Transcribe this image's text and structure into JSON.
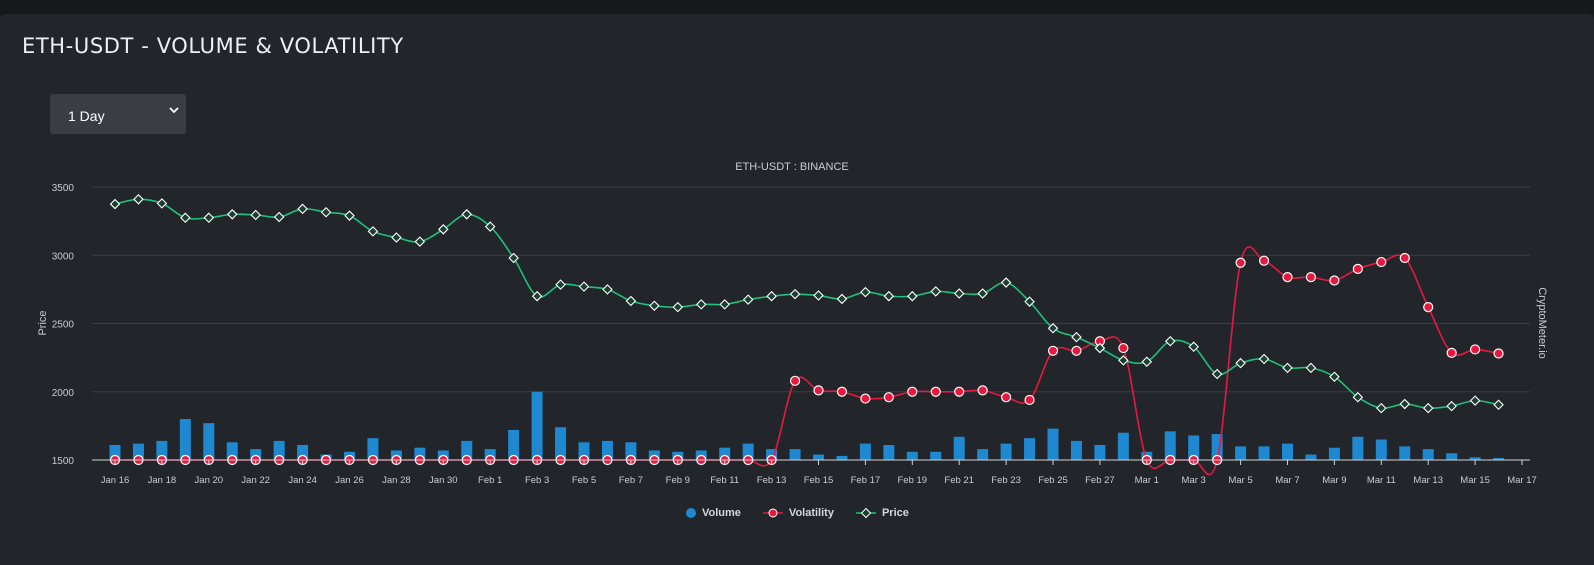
{
  "page": {
    "title": "ETH-USDT - VOLUME & VOLATILITY",
    "timeframe": {
      "selected": "1 Day"
    }
  },
  "chart_data": {
    "type": "line",
    "title": "ETH-USDT : BINANCE",
    "ylabel": "Price",
    "watermark": "CryptoMeter.io",
    "ylim": [
      1500,
      3500
    ],
    "yticks": [
      1500,
      2000,
      2500,
      3000,
      3500
    ],
    "grid": true,
    "legend_position": "bottom",
    "x": [
      "Jan 16",
      "Jan 17",
      "Jan 18",
      "Jan 19",
      "Jan 20",
      "Jan 21",
      "Jan 22",
      "Jan 23",
      "Jan 24",
      "Jan 25",
      "Jan 26",
      "Jan 27",
      "Jan 28",
      "Jan 29",
      "Jan 30",
      "Jan 31",
      "Feb 1",
      "Feb 2",
      "Feb 3",
      "Feb 4",
      "Feb 5",
      "Feb 6",
      "Feb 7",
      "Feb 8",
      "Feb 9",
      "Feb 10",
      "Feb 11",
      "Feb 12",
      "Feb 13",
      "Feb 14",
      "Feb 15",
      "Feb 16",
      "Feb 17",
      "Feb 18",
      "Feb 19",
      "Feb 20",
      "Feb 21",
      "Feb 22",
      "Feb 23",
      "Feb 24",
      "Feb 25",
      "Feb 26",
      "Feb 27",
      "Feb 28",
      "Mar 1",
      "Mar 2",
      "Mar 3",
      "Mar 4",
      "Mar 5",
      "Mar 6",
      "Mar 7",
      "Mar 8",
      "Mar 9",
      "Mar 10",
      "Mar 11",
      "Mar 12",
      "Mar 13",
      "Mar 14",
      "Mar 15",
      "Mar 16"
    ],
    "x_tick_labels": [
      "Jan 16",
      "Jan 18",
      "Jan 20",
      "Jan 22",
      "Jan 24",
      "Jan 26",
      "Jan 28",
      "Jan 30",
      "Feb 1",
      "Feb 3",
      "Feb 5",
      "Feb 7",
      "Feb 9",
      "Feb 11",
      "Feb 13",
      "Feb 15",
      "Feb 17",
      "Feb 19",
      "Feb 21",
      "Feb 23",
      "Feb 25",
      "Feb 27",
      "Mar 1",
      "Mar 3",
      "Mar 5",
      "Mar 7",
      "Mar 9",
      "Mar 11",
      "Mar 13",
      "Mar 15",
      "Mar 17"
    ],
    "series": [
      {
        "name": "Volume",
        "kind": "bar",
        "color": "#1e88d0",
        "values": [
          1610,
          1620,
          1640,
          1800,
          1770,
          1630,
          1580,
          1640,
          1610,
          1540,
          1560,
          1660,
          1570,
          1590,
          1570,
          1640,
          1580,
          1720,
          2000,
          1740,
          1630,
          1640,
          1630,
          1570,
          1560,
          1570,
          1590,
          1620,
          1580,
          1580,
          1540,
          1530,
          1620,
          1610,
          1560,
          1560,
          1670,
          1580,
          1620,
          1660,
          1730,
          1640,
          1610,
          1700,
          1560,
          1710,
          1680,
          1690,
          1600,
          1600,
          1620,
          1540,
          1590,
          1670,
          1650,
          1600,
          1580,
          1550,
          1520,
          1515
        ]
      },
      {
        "name": "Volatility",
        "kind": "line",
        "color": "#e8193e",
        "values": [
          1500,
          1500,
          1500,
          1500,
          1500,
          1500,
          1500,
          1500,
          1500,
          1500,
          1500,
          1500,
          1500,
          1500,
          1500,
          1500,
          1500,
          1500,
          1500,
          1500,
          1500,
          1500,
          1500,
          1500,
          1500,
          1500,
          1500,
          1500,
          1500,
          2080,
          2010,
          2000,
          1950,
          1960,
          2000,
          2000,
          2000,
          2010,
          1960,
          1940,
          2300,
          2300,
          2370,
          2320,
          1500,
          1500,
          1500,
          1500,
          2945,
          2960,
          2840,
          2840,
          2815,
          2900,
          2950,
          2980,
          2620,
          2285,
          2310,
          2280
        ]
      },
      {
        "name": "Price",
        "kind": "line",
        "color": "#1ec27a",
        "values": [
          3375,
          3410,
          3380,
          3275,
          3275,
          3300,
          3295,
          3280,
          3340,
          3315,
          3290,
          3175,
          3130,
          3100,
          3190,
          3300,
          3210,
          2980,
          2700,
          2785,
          2770,
          2750,
          2665,
          2630,
          2620,
          2640,
          2640,
          2675,
          2700,
          2715,
          2705,
          2680,
          2730,
          2700,
          2700,
          2735,
          2720,
          2720,
          2800,
          2660,
          2465,
          2400,
          2320,
          2230,
          2220,
          2370,
          2330,
          2130,
          2210,
          2240,
          2175,
          2175,
          2110,
          1960,
          1880,
          1910,
          1880,
          1895,
          1935,
          1905
        ]
      }
    ]
  }
}
